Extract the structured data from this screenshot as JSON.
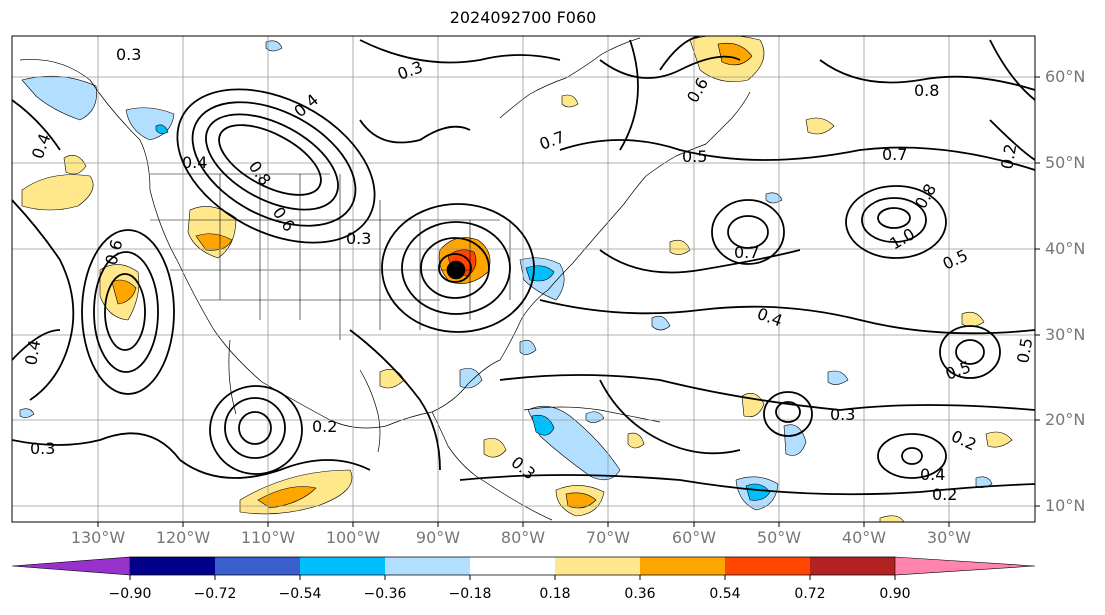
{
  "title": "2024092700 F060",
  "lat_labels": [
    "60°N",
    "50°N",
    "40°N",
    "30°N",
    "20°N",
    "10°N"
  ],
  "lon_labels": [
    "130°W",
    "120°W",
    "110°W",
    "100°W",
    "90°W",
    "80°W",
    "70°W",
    "60°W",
    "50°W",
    "40°W",
    "30°W"
  ],
  "colorbar": {
    "ticks": [
      "−0.90",
      "−0.72",
      "−0.54",
      "−0.36",
      "−0.18",
      "0.18",
      "0.36",
      "0.54",
      "0.72",
      "0.90"
    ],
    "colors": [
      "#9932cc",
      "#00008b",
      "#3a5fcd",
      "#00bfff",
      "#b2dfff",
      "#ffffff",
      "#ffe88c",
      "#ffa500",
      "#ff4500",
      "#b22222",
      "#ff85b0"
    ]
  },
  "contour_labels": [
    {
      "text": "0.3"
    },
    {
      "text": "0.3"
    },
    {
      "text": "0.4"
    },
    {
      "text": "0.4"
    },
    {
      "text": "0.8"
    },
    {
      "text": "0.6"
    },
    {
      "text": "0.3"
    },
    {
      "text": "0.6"
    },
    {
      "text": "0.7"
    },
    {
      "text": "0.5"
    },
    {
      "text": "0.8"
    },
    {
      "text": "0.7"
    },
    {
      "text": "0.8"
    },
    {
      "text": "1.0"
    },
    {
      "text": "0.7"
    },
    {
      "text": "0.5"
    },
    {
      "text": "0.4"
    },
    {
      "text": "0.3"
    },
    {
      "text": "0.2"
    },
    {
      "text": "0.3"
    },
    {
      "text": "0.2"
    },
    {
      "text": "0.4"
    },
    {
      "text": "0.2"
    },
    {
      "text": "0.5"
    },
    {
      "text": "0.5"
    },
    {
      "text": "0.4"
    },
    {
      "text": "0.4"
    },
    {
      "text": "0.3"
    },
    {
      "text": "0.6"
    },
    {
      "text": "0.2"
    }
  ]
}
